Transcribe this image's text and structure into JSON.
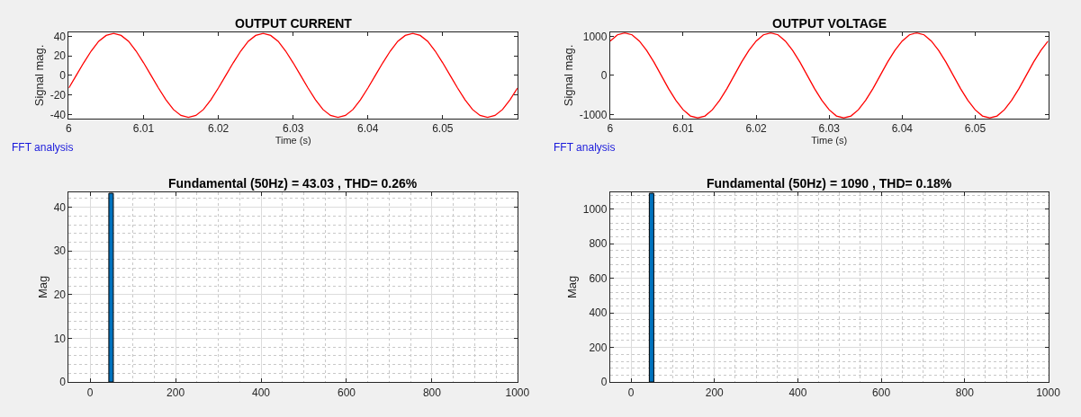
{
  "chart_data": [
    {
      "type": "line",
      "title": "OUTPUT CURRENT",
      "xlabel": "Time (s)",
      "ylabel": "Signal mag.",
      "x": [
        6,
        6.001,
        6.002,
        6.003,
        6.004,
        6.005,
        6.006,
        6.007,
        6.008,
        6.009,
        6.01,
        6.011,
        6.012,
        6.013,
        6.014,
        6.015,
        6.016,
        6.017,
        6.018,
        6.019,
        6.02,
        6.021,
        6.022,
        6.023,
        6.024,
        6.025,
        6.026,
        6.027,
        6.028,
        6.029,
        6.03,
        6.031,
        6.032,
        6.033,
        6.034,
        6.035,
        6.036,
        6.037,
        6.038,
        6.039,
        6.04,
        6.041,
        6.042,
        6.043,
        6.044,
        6.045,
        6.046,
        6.047,
        6.048,
        6.049,
        6.05,
        6.051,
        6.052,
        6.053,
        6.054,
        6.055,
        6.056,
        6.057,
        6.058,
        6.059,
        6.06
      ],
      "series": [
        {
          "color": "#ff0000",
          "values": [
            -13,
            0,
            13,
            25,
            35,
            41,
            43,
            41,
            35,
            25,
            13,
            0,
            -13,
            -25,
            -35,
            -41,
            -43,
            -41,
            -35,
            -25,
            -13,
            0,
            13,
            25,
            35,
            41,
            43,
            41,
            35,
            25,
            13,
            0,
            -13,
            -25,
            -35,
            -41,
            -43,
            -41,
            -35,
            -25,
            -13,
            0,
            13,
            25,
            35,
            41,
            43,
            41,
            35,
            25,
            13,
            0,
            -13,
            -25,
            -35,
            -41,
            -43,
            -41,
            -35,
            -25,
            -13
          ]
        }
      ],
      "xlim": [
        6,
        6.06
      ],
      "xticks": [
        6,
        6.01,
        6.02,
        6.03,
        6.04,
        6.05
      ],
      "ylim": [
        -44,
        44
      ],
      "yticks": [
        -40,
        -20,
        0,
        20,
        40
      ]
    },
    {
      "type": "line",
      "title": "OUTPUT VOLTAGE",
      "xlabel": "Time (s)",
      "ylabel": "Signal mag.",
      "x": [
        6,
        6.001,
        6.002,
        6.003,
        6.004,
        6.005,
        6.006,
        6.007,
        6.008,
        6.009,
        6.01,
        6.011,
        6.012,
        6.013,
        6.014,
        6.015,
        6.016,
        6.017,
        6.018,
        6.019,
        6.02,
        6.021,
        6.022,
        6.023,
        6.024,
        6.025,
        6.026,
        6.027,
        6.028,
        6.029,
        6.03,
        6.031,
        6.032,
        6.033,
        6.034,
        6.035,
        6.036,
        6.037,
        6.038,
        6.039,
        6.04,
        6.041,
        6.042,
        6.043,
        6.044,
        6.045,
        6.046,
        6.047,
        6.048,
        6.049,
        6.05,
        6.051,
        6.052,
        6.053,
        6.054,
        6.055,
        6.056,
        6.057,
        6.058,
        6.059,
        6.06
      ],
      "series": [
        {
          "color": "#ff0000",
          "values": [
            880,
            1040,
            1090,
            1040,
            880,
            640,
            340,
            0,
            -340,
            -640,
            -880,
            -1040,
            -1090,
            -1040,
            -880,
            -640,
            -340,
            0,
            340,
            640,
            880,
            1040,
            1090,
            1040,
            880,
            640,
            340,
            0,
            -340,
            -640,
            -880,
            -1040,
            -1090,
            -1040,
            -880,
            -640,
            -340,
            0,
            340,
            640,
            880,
            1040,
            1090,
            1040,
            880,
            640,
            340,
            0,
            -340,
            -640,
            -880,
            -1040,
            -1090,
            -1040,
            -880,
            -640,
            -340,
            0,
            340,
            640,
            880
          ]
        }
      ],
      "xlim": [
        6,
        6.06
      ],
      "xticks": [
        6,
        6.01,
        6.02,
        6.03,
        6.04,
        6.05
      ],
      "ylim": [
        -1100,
        1100
      ],
      "yticks": [
        -1000,
        0,
        1000
      ]
    },
    {
      "type": "bar",
      "title": "Fundamental (50Hz) = 43.03 , THD= 0.26%",
      "ylabel": "Mag",
      "annotations": [
        "FFT analysis"
      ],
      "x": [
        50
      ],
      "series": [
        {
          "color": "#0072bd",
          "values": [
            43
          ]
        }
      ],
      "xlim": [
        -50,
        1000
      ],
      "xticks": [
        0,
        200,
        400,
        600,
        800,
        1000
      ],
      "ylim": [
        0,
        43.5
      ],
      "yticks": [
        0,
        10,
        20,
        30,
        40
      ],
      "grid": true
    },
    {
      "type": "bar",
      "title": "Fundamental (50Hz) = 1090 , THD= 0.18%",
      "ylabel": "Mag",
      "annotations": [
        "FFT analysis"
      ],
      "x": [
        50
      ],
      "series": [
        {
          "color": "#0072bd",
          "values": [
            1090
          ]
        }
      ],
      "xlim": [
        -50,
        1000
      ],
      "xticks": [
        0,
        200,
        400,
        600,
        800,
        1000
      ],
      "ylim": [
        0,
        1100
      ],
      "yticks": [
        0,
        200,
        400,
        600,
        800,
        1000
      ],
      "grid": true
    }
  ]
}
